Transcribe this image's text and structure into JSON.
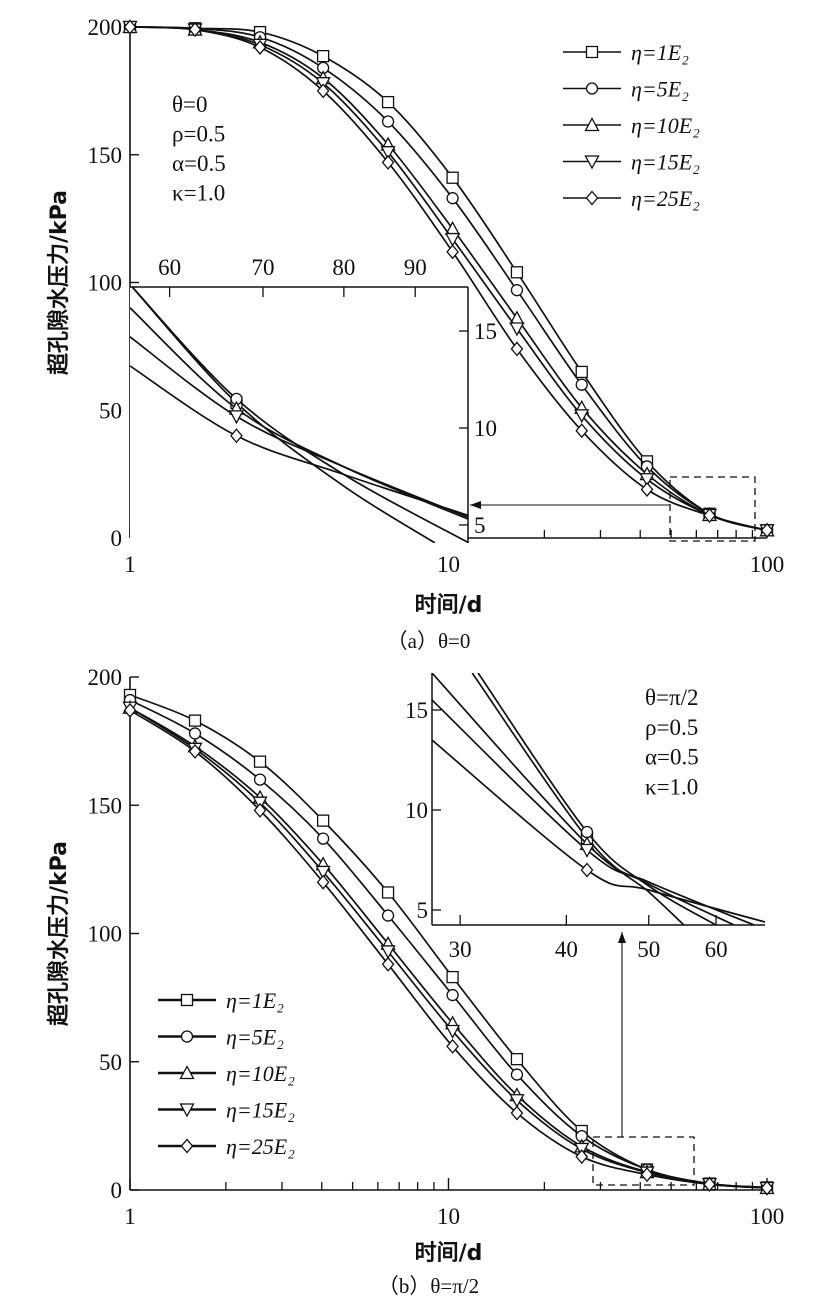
{
  "chart_data": [
    {
      "type": "line",
      "title": "",
      "caption": "（a）θ=0",
      "xlabel": "时间/d",
      "ylabel": "超孔隙水压力/kPa",
      "xscale": "log",
      "xlim": [
        1,
        100
      ],
      "ylim": [
        0,
        200
      ],
      "xticks": [
        "1",
        "10",
        "100"
      ],
      "yticks": [
        "0",
        "50",
        "100",
        "150",
        "200"
      ],
      "legend_position": "top-right",
      "params": [
        "θ=0",
        "ρ=0.5",
        "α=0.5",
        "κ=1.0"
      ],
      "x": [
        1,
        1.6,
        2.56,
        4.04,
        6.46,
        10.3,
        16.4,
        26.2,
        42,
        66,
        100
      ],
      "series": [
        {
          "name": "η=1E₂",
          "marker": "square",
          "values": [
            200,
            199.5,
            198,
            188.6,
            170.6,
            141,
            104,
            65,
            30,
            9.5,
            3
          ]
        },
        {
          "name": "η=5E₂",
          "marker": "circle",
          "values": [
            200,
            199.5,
            196,
            184,
            163,
            133,
            97,
            60,
            28,
            9.5,
            3
          ]
        },
        {
          "name": "η=10E₂",
          "marker": "triangle-up",
          "values": [
            200,
            199,
            194,
            180,
            154,
            121,
            86,
            51,
            25,
            9,
            3
          ]
        },
        {
          "name": "η=15E₂",
          "marker": "triangle-down",
          "values": [
            200,
            199,
            193,
            178,
            151,
            117,
            82,
            48,
            23,
            9,
            3
          ]
        },
        {
          "name": "η=25E₂",
          "marker": "diamond",
          "values": [
            200,
            199,
            192,
            175,
            147,
            112,
            74,
            42,
            19,
            8.8,
            3
          ]
        }
      ],
      "inset": {
        "xscale": "log",
        "xlim": [
          56.2,
          98.2
        ],
        "ylim": [
          4.07,
          17.27
        ],
        "xticks": [
          "60",
          "70",
          "80",
          "90"
        ],
        "yticks": [
          "5",
          "10",
          "15"
        ],
        "marker_x": 67,
        "series": [
          {
            "points": [
              [
                56.2,
                17.4
              ],
              [
                67,
                11.3
              ],
              [
                80,
                7.0
              ],
              [
                93,
                4.07
              ]
            ]
          },
          {
            "points": [
              [
                56.2,
                17.4
              ],
              [
                67,
                11.5
              ],
              [
                80,
                7.6
              ],
              [
                98.2,
                4.1
              ]
            ]
          },
          {
            "points": [
              [
                56.2,
                16.2
              ],
              [
                67,
                11.0
              ],
              [
                80,
                8.0
              ],
              [
                98.2,
                5.3
              ]
            ]
          },
          {
            "points": [
              [
                56.2,
                14.7
              ],
              [
                67,
                10.6
              ],
              [
                80,
                8.0
              ],
              [
                98.2,
                5.4
              ]
            ]
          },
          {
            "points": [
              [
                56.2,
                13.2
              ],
              [
                67,
                9.6
              ],
              [
                80,
                7.6
              ],
              [
                98.2,
                5.5
              ]
            ]
          }
        ]
      }
    },
    {
      "type": "line",
      "title": "",
      "caption": "（b）θ=π/2",
      "xlabel": "时间/d",
      "ylabel": "超孔隙水压力/kPa",
      "xscale": "log",
      "xlim": [
        1,
        100
      ],
      "ylim": [
        0,
        200
      ],
      "xticks": [
        "1",
        "10",
        "100"
      ],
      "yticks": [
        "0",
        "50",
        "100",
        "150",
        "200"
      ],
      "legend_position": "bottom-left",
      "params": [
        "θ=π/2",
        "ρ=0.5",
        "α=0.5",
        "κ=1.0"
      ],
      "x": [
        1,
        1.6,
        2.56,
        4.04,
        6.46,
        10.3,
        16.4,
        26.2,
        42,
        66,
        100
      ],
      "series": [
        {
          "name": "η=1E₂",
          "marker": "square",
          "values": [
            193,
            183,
            167,
            144,
            116,
            83,
            51,
            23,
            8,
            2.5,
            1
          ]
        },
        {
          "name": "η=5E₂",
          "marker": "circle",
          "values": [
            191,
            178,
            160,
            137,
            107,
            76,
            45,
            21,
            8,
            2.5,
            1
          ]
        },
        {
          "name": "η=10E₂",
          "marker": "triangle-up",
          "values": [
            188,
            173,
            153,
            127,
            96,
            65,
            37,
            17,
            7,
            2.3,
            0.8
          ]
        },
        {
          "name": "η=15E₂",
          "marker": "triangle-down",
          "values": [
            188,
            172,
            151,
            124,
            93,
            62,
            35,
            16,
            6.8,
            2.3,
            0.8
          ]
        },
        {
          "name": "η=25E₂",
          "marker": "diamond",
          "values": [
            187,
            171,
            148,
            120,
            88,
            56,
            30,
            13,
            6,
            2.2,
            0.8
          ]
        }
      ],
      "inset": {
        "xscale": "log",
        "xlim": [
          27.8,
          68.5
        ],
        "ylim": [
          4.25,
          16.85
        ],
        "xticks": [
          "30",
          "40",
          "50",
          "60"
        ],
        "yticks": [
          "5",
          "10",
          "15"
        ],
        "marker_x": 42.3,
        "series": [
          {
            "points": [
              [
                31,
                16.85
              ],
              [
                42.3,
                8.6
              ],
              [
                50,
                5.9
              ],
              [
                55,
                4.25
              ]
            ]
          },
          {
            "points": [
              [
                31.5,
                16.85
              ],
              [
                42.3,
                8.9
              ],
              [
                50,
                6.2
              ],
              [
                60,
                4.25
              ]
            ]
          },
          {
            "points": [
              [
                27.8,
                16.85
              ],
              [
                42.3,
                8.3
              ],
              [
                50,
                6.3
              ],
              [
                63,
                4.25
              ]
            ]
          },
          {
            "points": [
              [
                27.8,
                15.5
              ],
              [
                42.3,
                8.0
              ],
              [
                50,
                6.4
              ],
              [
                66.5,
                4.25
              ]
            ]
          },
          {
            "points": [
              [
                27.8,
                13.5
              ],
              [
                42.3,
                7.0
              ],
              [
                50,
                6.0
              ],
              [
                68.5,
                4.4
              ]
            ]
          }
        ]
      }
    }
  ]
}
